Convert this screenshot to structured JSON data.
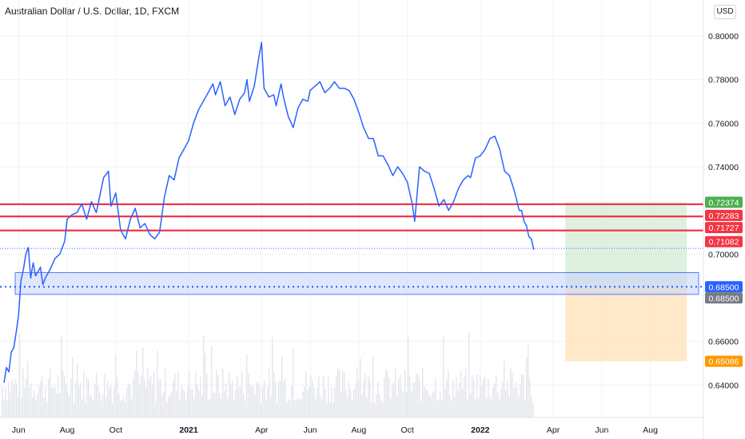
{
  "header": {
    "title": "Australian Dollar / U.S. Dollar, 1D, FXCM",
    "currency_button": "USD"
  },
  "colors": {
    "price_line": "#2962ff",
    "resistance_line": "#f23645",
    "target_zone": "#c8e6c9",
    "stop_zone": "#ffe0b2",
    "support_box": "#c6d3fb",
    "dotted_line": "#2962ff",
    "axis_text": "#131722"
  },
  "chart_data": {
    "type": "line",
    "title": "Australian Dollar / U.S. Dollar, 1D, FXCM",
    "xlabel": "",
    "ylabel": "",
    "ylim": [
      0.625,
      0.808
    ],
    "x_ticks": [
      "Jun",
      "Aug",
      "Oct",
      "2021",
      "Apr",
      "Jun",
      "Aug",
      "Oct",
      "2022",
      "Apr",
      "Jun",
      "Aug"
    ],
    "x_tick_months": [
      5,
      7,
      9,
      12,
      15,
      17,
      19,
      21,
      24,
      27,
      29,
      31
    ],
    "y_ticks": [
      "0.80000",
      "0.78000",
      "0.76000",
      "0.74000",
      "0.70000",
      "0.66000",
      "0.64000"
    ],
    "y_tick_values": [
      0.8,
      0.78,
      0.76,
      0.74,
      0.7,
      0.66,
      0.64
    ],
    "grid": true,
    "series": [
      {
        "values": [
          [
            4.4,
            0.641
          ],
          [
            4.5,
            0.648
          ],
          [
            4.6,
            0.646
          ],
          [
            4.7,
            0.655
          ],
          [
            4.8,
            0.657
          ],
          [
            4.9,
            0.664
          ],
          [
            5.0,
            0.672
          ],
          [
            5.1,
            0.688
          ],
          [
            5.2,
            0.693
          ],
          [
            5.3,
            0.7
          ],
          [
            5.4,
            0.703
          ],
          [
            5.5,
            0.689
          ],
          [
            5.6,
            0.696
          ],
          [
            5.7,
            0.69
          ],
          [
            5.9,
            0.694
          ],
          [
            6.0,
            0.686
          ],
          [
            6.1,
            0.689
          ],
          [
            6.3,
            0.693
          ],
          [
            6.5,
            0.698
          ],
          [
            6.7,
            0.7
          ],
          [
            6.9,
            0.706
          ],
          [
            7.0,
            0.716
          ],
          [
            7.2,
            0.718
          ],
          [
            7.4,
            0.719
          ],
          [
            7.6,
            0.723
          ],
          [
            7.8,
            0.716
          ],
          [
            8.0,
            0.724
          ],
          [
            8.2,
            0.719
          ],
          [
            8.5,
            0.735
          ],
          [
            8.7,
            0.738
          ],
          [
            8.8,
            0.722
          ],
          [
            9.0,
            0.728
          ],
          [
            9.2,
            0.711
          ],
          [
            9.4,
            0.707
          ],
          [
            9.6,
            0.716
          ],
          [
            9.8,
            0.721
          ],
          [
            10.0,
            0.712
          ],
          [
            10.2,
            0.714
          ],
          [
            10.4,
            0.709
          ],
          [
            10.6,
            0.707
          ],
          [
            10.8,
            0.71
          ],
          [
            11.0,
            0.726
          ],
          [
            11.2,
            0.736
          ],
          [
            11.4,
            0.734
          ],
          [
            11.6,
            0.744
          ],
          [
            11.8,
            0.748
          ],
          [
            12.0,
            0.752
          ],
          [
            12.2,
            0.76
          ],
          [
            12.4,
            0.766
          ],
          [
            12.6,
            0.77
          ],
          [
            12.8,
            0.774
          ],
          [
            13.0,
            0.778
          ],
          [
            13.1,
            0.773
          ],
          [
            13.3,
            0.779
          ],
          [
            13.5,
            0.768
          ],
          [
            13.7,
            0.772
          ],
          [
            13.9,
            0.764
          ],
          [
            14.1,
            0.771
          ],
          [
            14.3,
            0.774
          ],
          [
            14.4,
            0.78
          ],
          [
            14.5,
            0.77
          ],
          [
            14.7,
            0.777
          ],
          [
            14.9,
            0.791
          ],
          [
            15.0,
            0.797
          ],
          [
            15.1,
            0.776
          ],
          [
            15.3,
            0.772
          ],
          [
            15.5,
            0.773
          ],
          [
            15.6,
            0.768
          ],
          [
            15.8,
            0.778
          ],
          [
            15.9,
            0.772
          ],
          [
            16.1,
            0.763
          ],
          [
            16.3,
            0.758
          ],
          [
            16.5,
            0.767
          ],
          [
            16.7,
            0.771
          ],
          [
            16.9,
            0.77
          ],
          [
            17.0,
            0.775
          ],
          [
            17.2,
            0.777
          ],
          [
            17.4,
            0.779
          ],
          [
            17.6,
            0.774
          ],
          [
            17.8,
            0.776
          ],
          [
            18.0,
            0.779
          ],
          [
            18.2,
            0.776
          ],
          [
            18.4,
            0.776
          ],
          [
            18.6,
            0.775
          ],
          [
            18.8,
            0.771
          ],
          [
            19.0,
            0.765
          ],
          [
            19.2,
            0.758
          ],
          [
            19.4,
            0.753
          ],
          [
            19.6,
            0.753
          ],
          [
            19.8,
            0.745
          ],
          [
            20.0,
            0.745
          ],
          [
            20.2,
            0.741
          ],
          [
            20.4,
            0.736
          ],
          [
            20.6,
            0.74
          ],
          [
            20.8,
            0.737
          ],
          [
            21.0,
            0.733
          ],
          [
            21.2,
            0.723
          ],
          [
            21.3,
            0.715
          ],
          [
            21.5,
            0.74
          ],
          [
            21.7,
            0.738
          ],
          [
            21.9,
            0.737
          ],
          [
            22.1,
            0.73
          ],
          [
            22.3,
            0.722
          ],
          [
            22.5,
            0.725
          ],
          [
            22.7,
            0.72
          ],
          [
            22.9,
            0.724
          ],
          [
            23.1,
            0.73
          ],
          [
            23.3,
            0.734
          ],
          [
            23.5,
            0.736
          ],
          [
            23.6,
            0.735
          ],
          [
            23.8,
            0.744
          ],
          [
            24.0,
            0.745
          ],
          [
            24.2,
            0.748
          ],
          [
            24.4,
            0.753
          ],
          [
            24.6,
            0.754
          ],
          [
            24.8,
            0.748
          ],
          [
            25.0,
            0.738
          ],
          [
            25.2,
            0.736
          ],
          [
            25.4,
            0.729
          ],
          [
            25.6,
            0.72
          ],
          [
            25.7,
            0.72
          ],
          [
            25.8,
            0.715
          ],
          [
            25.9,
            0.713
          ],
          [
            26.0,
            0.708
          ],
          [
            26.1,
            0.707
          ],
          [
            26.2,
            0.702
          ]
        ]
      }
    ],
    "support_zone": [
      0.6815,
      0.6915
    ],
    "resistance_levels": [
      0.72283,
      0.71727,
      0.71082
    ],
    "last_price_guide": 0.7026,
    "dotted_level": 0.685,
    "position": {
      "entry": 0.685,
      "target": 0.72374,
      "stop": 0.65086,
      "start_month": 27.5,
      "end_month": 32.5
    },
    "price_labels": [
      {
        "text": "0.72374",
        "value": 0.72374,
        "color": "#4caf50"
      },
      {
        "text": "0.72283",
        "value": 0.72283,
        "color": "#f23645"
      },
      {
        "text": "0.71727",
        "value": 0.71727,
        "color": "#f23645"
      },
      {
        "text": "0.71082",
        "value": 0.71082,
        "color": "#f23645"
      },
      {
        "text": "0.68500",
        "value": 0.685,
        "color": "#2962ff"
      },
      {
        "text": "0.68500",
        "value": 0.685,
        "color": "#787b86"
      },
      {
        "text": "0.65086",
        "value": 0.65086,
        "color": "#ff9800"
      }
    ]
  }
}
